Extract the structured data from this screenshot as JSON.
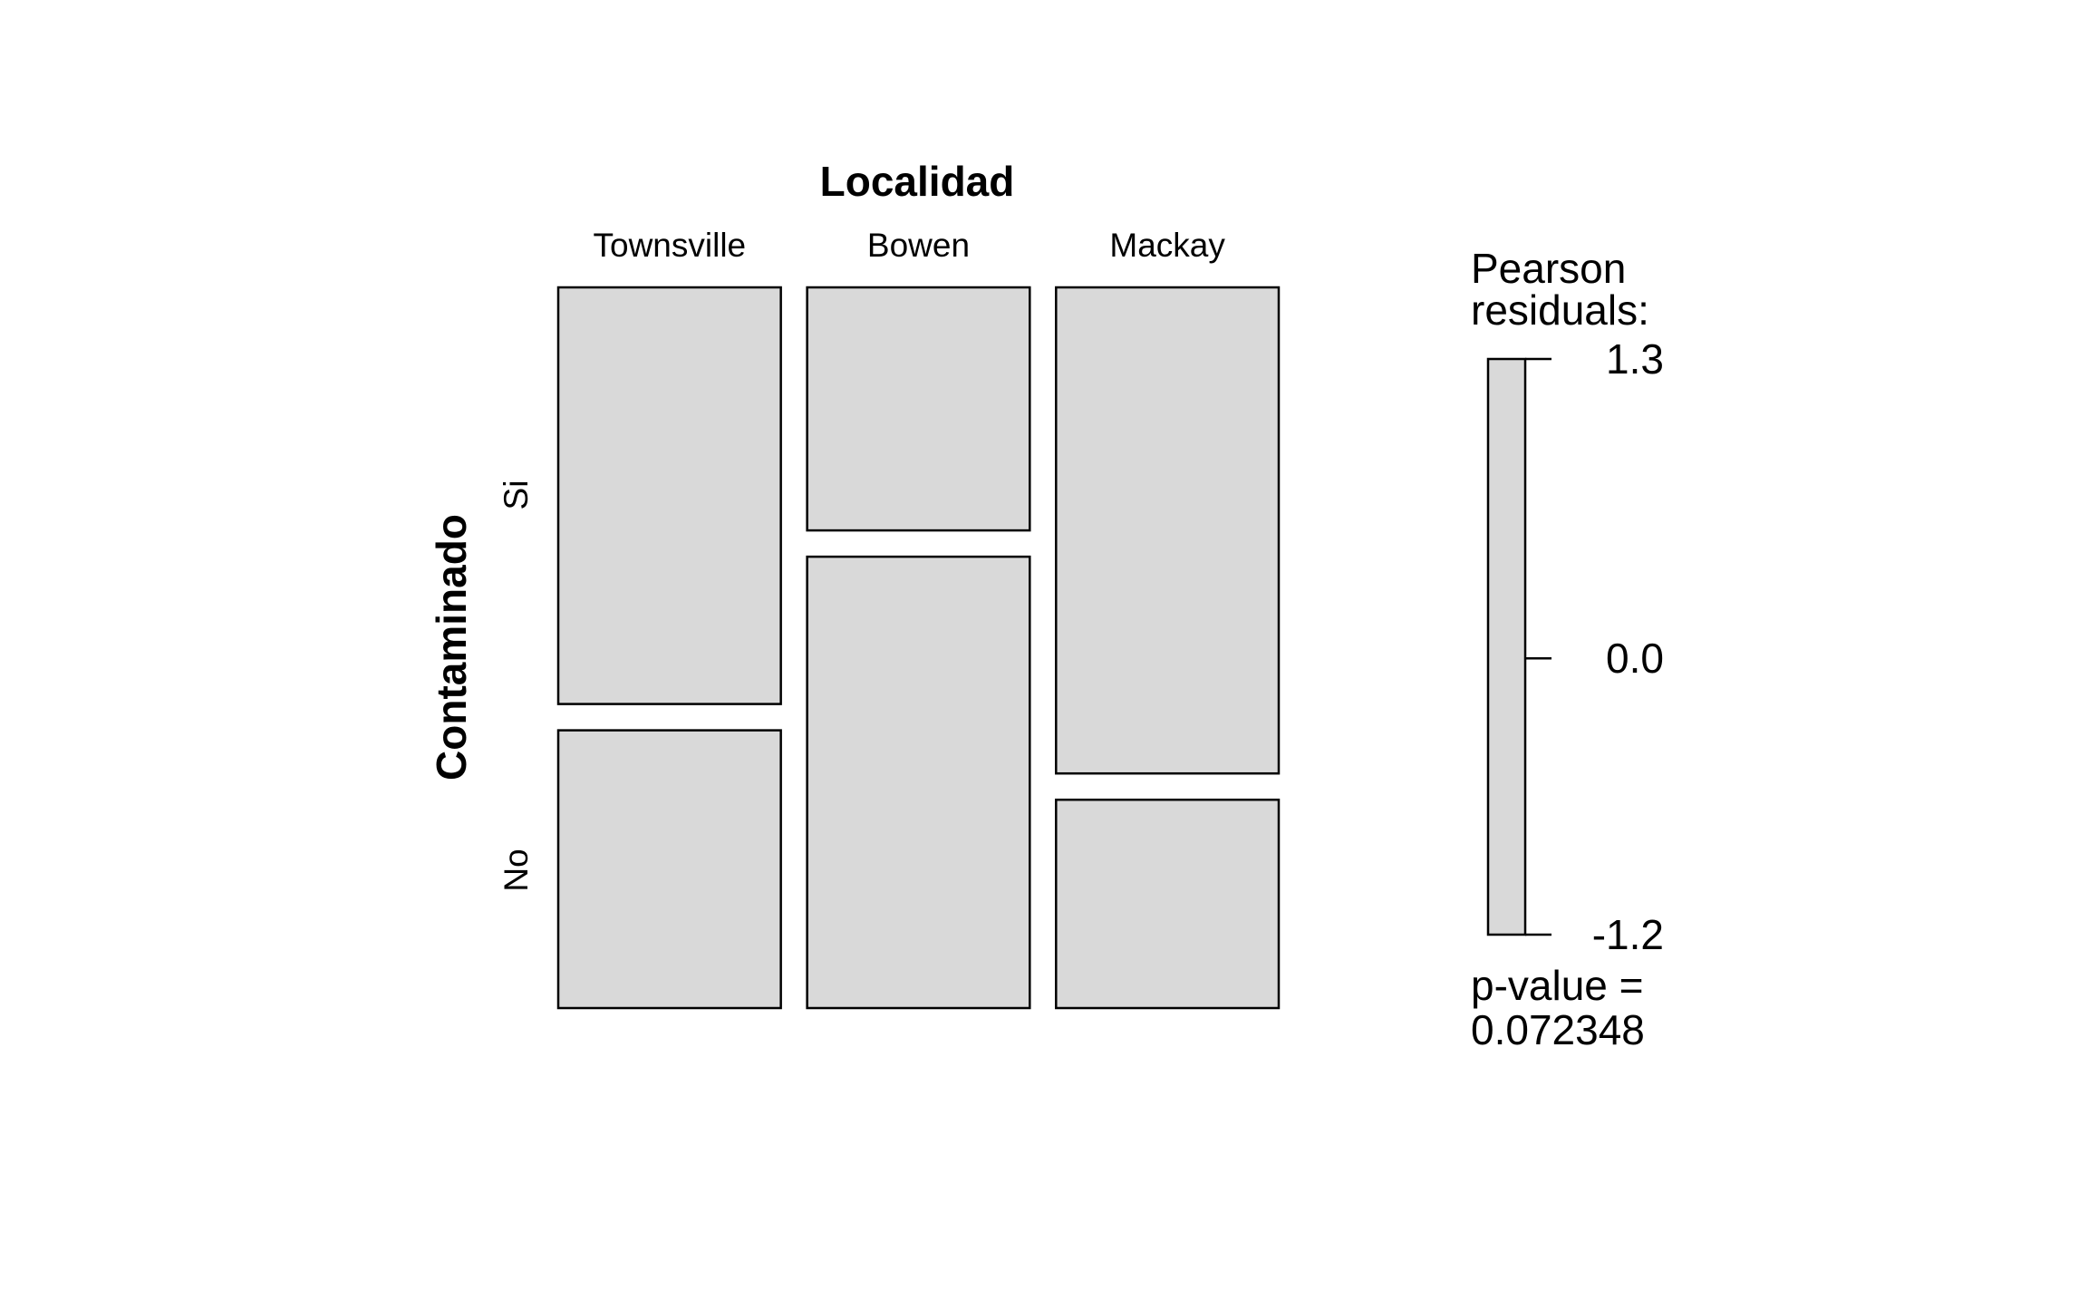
{
  "chart_data": {
    "type": "mosaic",
    "title": "Localidad",
    "ylabel": "Contaminado",
    "column_variable": "Localidad",
    "row_variable": "Contaminado",
    "columns": [
      "Townsville",
      "Bowen",
      "Mackay"
    ],
    "rows": [
      "Si",
      "No"
    ],
    "column_proportions": [
      0.3333,
      0.3333,
      0.3334
    ],
    "row_proportions_within_column": [
      {
        "column": "Townsville",
        "Si": 0.6,
        "No": 0.4
      },
      {
        "column": "Bowen",
        "Si": 0.35,
        "No": 0.65
      },
      {
        "column": "Mackay",
        "Si": 0.7,
        "No": 0.3
      }
    ],
    "tile_color": "#d9d9d9",
    "border_color": "#000000",
    "legend": {
      "title_line1": "Pearson",
      "title_line2": "residuals:",
      "ticks": [
        "1.3",
        "0.0",
        "-1.2"
      ],
      "tick_values": [
        1.3,
        0.0,
        -1.2
      ],
      "min": -1.2,
      "max": 1.3,
      "color": "#d9d9d9"
    },
    "pvalue_line1": "p-value =",
    "pvalue_line2": "0.072348"
  }
}
